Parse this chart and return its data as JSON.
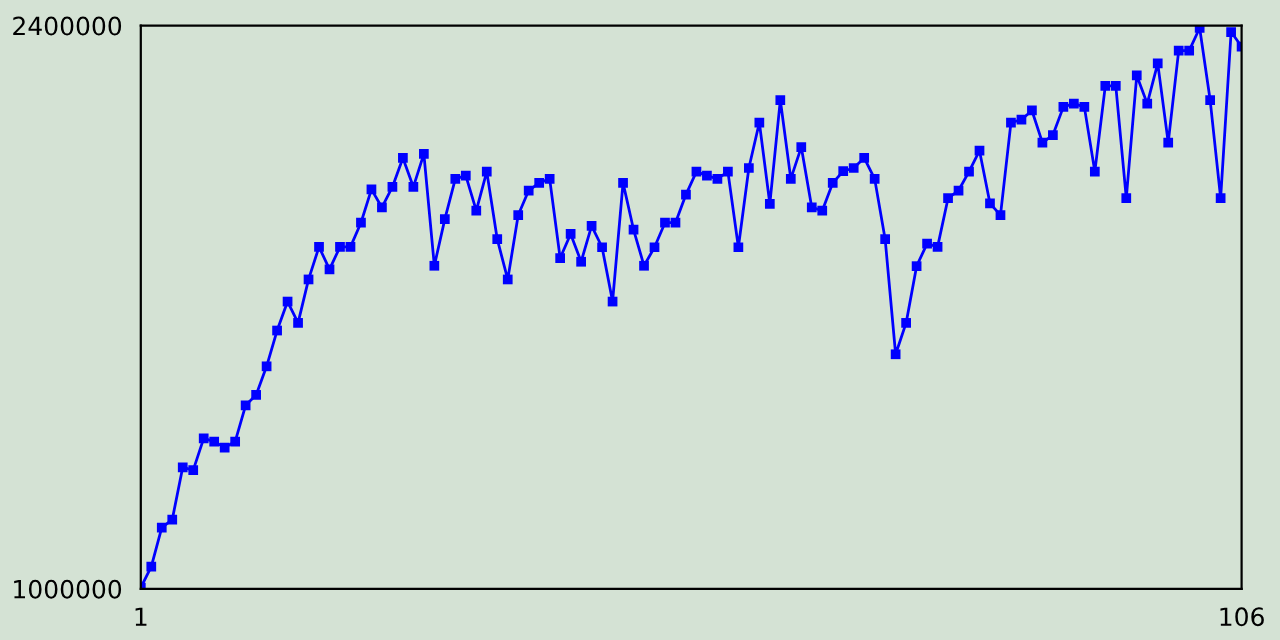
{
  "chart_data": {
    "type": "line",
    "x": [
      1,
      2,
      3,
      4,
      5,
      6,
      7,
      8,
      9,
      10,
      11,
      12,
      13,
      14,
      15,
      16,
      17,
      18,
      19,
      20,
      21,
      22,
      23,
      24,
      25,
      26,
      27,
      28,
      29,
      30,
      31,
      32,
      33,
      34,
      35,
      36,
      37,
      38,
      39,
      40,
      41,
      42,
      43,
      44,
      45,
      46,
      47,
      48,
      49,
      50,
      51,
      52,
      53,
      54,
      55,
      56,
      57,
      58,
      59,
      60,
      61,
      62,
      63,
      64,
      65,
      66,
      67,
      68,
      69,
      70,
      71,
      72,
      73,
      74,
      75,
      76,
      77,
      78,
      79,
      80,
      81,
      82,
      83,
      84,
      85,
      86,
      87,
      88,
      89,
      90,
      91,
      92,
      93,
      94,
      95,
      96,
      97,
      98,
      99,
      100,
      101,
      102,
      103,
      104,
      105,
      106
    ],
    "series": [
      {
        "color": "#0000ff",
        "values": [
          1003000,
          1055000,
          1152000,
          1172000,
          1302000,
          1295000,
          1374000,
          1366000,
          1351000,
          1366000,
          1456000,
          1482000,
          1553000,
          1642000,
          1714000,
          1661000,
          1769000,
          1850000,
          1794000,
          1850000,
          1850000,
          1910000,
          1993000,
          1948000,
          1999000,
          2071000,
          1999000,
          2081000,
          1803000,
          1919000,
          2019000,
          2027000,
          1940000,
          2037000,
          1869000,
          1769000,
          1929000,
          1990000,
          2009000,
          2019000,
          1822000,
          1882000,
          1813000,
          1902000,
          1849000,
          1714000,
          2009000,
          1893000,
          1803000,
          1849000,
          1910000,
          1910000,
          1980000,
          2037000,
          2027000,
          2019000,
          2037000,
          1849000,
          2046000,
          2159000,
          1957000,
          2215000,
          2019000,
          2098000,
          1948000,
          1940000,
          2009000,
          2038000,
          2046000,
          2071000,
          2019000,
          1869000,
          1583000,
          1661000,
          1802000,
          1858000,
          1850000,
          1971000,
          1990000,
          2037000,
          2089000,
          1958000,
          1929000,
          2159000,
          2166000,
          2189000,
          2109000,
          2128000,
          2198000,
          2206000,
          2198000,
          2037000,
          2250000,
          2250000,
          1971000,
          2276000,
          2206000,
          2306000,
          2109000,
          2338000,
          2338000,
          2394000,
          2215000,
          1971000,
          2384000,
          2348000
        ]
      }
    ],
    "xlim": [
      1,
      106
    ],
    "xticks": [
      1,
      106
    ],
    "ylim": [
      1000000,
      2400000
    ],
    "yticks": [
      1000000,
      2400000
    ],
    "marker": "square",
    "line_style": "solid",
    "grid": false,
    "legend": false
  }
}
